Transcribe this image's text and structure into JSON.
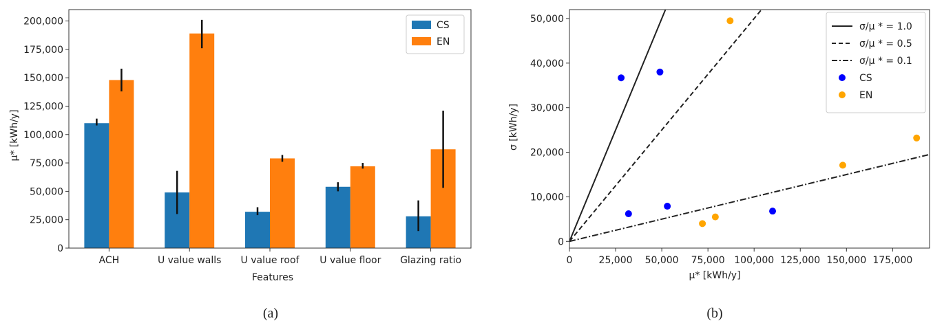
{
  "colors": {
    "cs_bar": "#1f77b4",
    "en_bar": "#ff7f0e",
    "cs_point": "#0000ff",
    "en_point": "#ffa500",
    "axis": "#333333"
  },
  "chart_data": [
    {
      "type": "bar",
      "caption": "(a)",
      "categories": [
        "ACH",
        "U value walls",
        "U value roof",
        "U value floor",
        "Glazing ratio"
      ],
      "series": [
        {
          "name": "CS",
          "values": [
            110000,
            49000,
            32000,
            54000,
            28000
          ],
          "err_low": [
            108000,
            30000,
            29000,
            50000,
            15000
          ],
          "err_high": [
            114000,
            68000,
            36000,
            58000,
            42000
          ]
        },
        {
          "name": "EN",
          "values": [
            148000,
            189000,
            79000,
            72000,
            87000
          ],
          "err_low": [
            138000,
            176000,
            76000,
            70000,
            53000
          ],
          "err_high": [
            158000,
            201000,
            82000,
            75000,
            121000
          ]
        }
      ],
      "xlabel": "Features",
      "ylabel": "μ* [kWh/y]",
      "ylim": [
        0,
        210000
      ],
      "yticks": [
        "0",
        "25,000",
        "50,000",
        "75,000",
        "100,000",
        "125,000",
        "150,000",
        "175,000",
        "200,000"
      ],
      "legend": "top-right",
      "grid": false
    },
    {
      "type": "scatter",
      "caption": "(b)",
      "series": [
        {
          "name": "CS",
          "points": [
            [
              28000,
              36700
            ],
            [
              32000,
              6200
            ],
            [
              49000,
              38000
            ],
            [
              53000,
              7900
            ],
            [
              110000,
              6800
            ]
          ]
        },
        {
          "name": "EN",
          "points": [
            [
              72000,
              4000
            ],
            [
              79000,
              5500
            ],
            [
              87000,
              49500
            ],
            [
              148000,
              17100
            ],
            [
              188000,
              23200
            ]
          ]
        }
      ],
      "lines": [
        {
          "name": "σ/μ * = 1.0",
          "ratio": 1.0,
          "style": "solid"
        },
        {
          "name": "σ/μ * = 0.5",
          "ratio": 0.5,
          "style": "dashed"
        },
        {
          "name": "σ/μ * = 0.1",
          "ratio": 0.1,
          "style": "dashdot"
        }
      ],
      "xlabel": "μ* [kWh/y]",
      "ylabel": "σ  [kWh/y]",
      "xlim": [
        0,
        195000
      ],
      "ylim": [
        -1500,
        52000
      ],
      "xticks": [
        {
          "v": 0,
          "label": "0"
        },
        {
          "v": 25000,
          "label": "25,000"
        },
        {
          "v": 50000,
          "label": "50,000"
        },
        {
          "v": 75000,
          "label": "75,000"
        },
        {
          "v": 100000,
          "label": "100,000"
        },
        {
          "v": 125000,
          "label": "125,000"
        },
        {
          "v": 150000,
          "label": "150,000"
        },
        {
          "v": 175000,
          "label": "175,000"
        }
      ],
      "yticks": [
        {
          "v": 0,
          "label": "0"
        },
        {
          "v": 10000,
          "label": "10,000"
        },
        {
          "v": 20000,
          "label": "20,000"
        },
        {
          "v": 30000,
          "label": "30,000"
        },
        {
          "v": 40000,
          "label": "40,000"
        },
        {
          "v": 50000,
          "label": "50,000"
        }
      ],
      "legend": "top-right",
      "grid": false
    }
  ]
}
